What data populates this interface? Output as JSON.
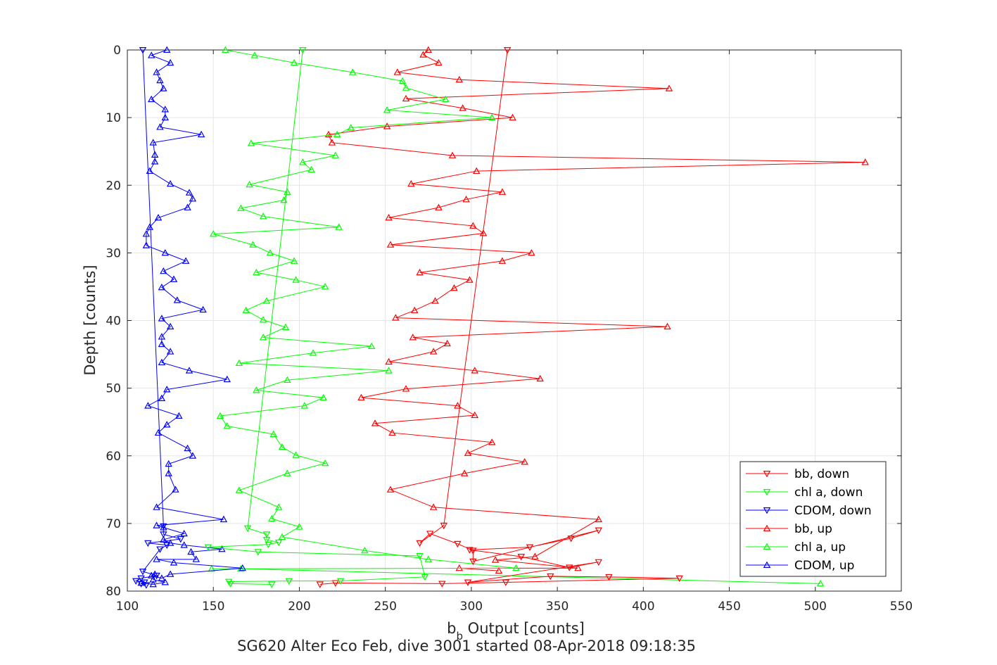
{
  "chart_data": {
    "type": "line",
    "title": "SG620 Alter Eco Feb, dive 3001 started 08-Apr-2018 09:18:35",
    "xlabel": {
      "main": "b",
      "sub": "b",
      "rest": " Output [counts]"
    },
    "ylabel": "Depth [counts]",
    "xlim": [
      100,
      550
    ],
    "ylim": [
      80,
      0
    ],
    "y_reversed": true,
    "grid": true,
    "legend_position": "bottom-right",
    "xticks": [
      100,
      150,
      200,
      250,
      300,
      350,
      400,
      450,
      500,
      550
    ],
    "yticks": [
      0,
      10,
      20,
      30,
      40,
      50,
      60,
      70,
      80
    ],
    "series": [
      {
        "name": "bb, down",
        "color": "#ff0000",
        "marker": "triangle-down",
        "x": [
          321,
          284,
          270,
          276,
          292,
          301,
          301,
          374,
          358,
          334,
          299,
          329,
          357,
          374,
          298,
          346,
          380,
          421,
          320,
          283,
          221,
          212
        ],
        "y": [
          0,
          70.3,
          72.9,
          71.5,
          73.0,
          74.0,
          75.6,
          71.0,
          72.2,
          73.5,
          73.9,
          74.9,
          76.5,
          75.7,
          78.7,
          77.8,
          77.9,
          78.1,
          78.7,
          78.9,
          78.8,
          79.0
        ]
      },
      {
        "name": "chl a, down",
        "color": "#00ff00",
        "marker": "triangle-down",
        "x": [
          202,
          170,
          181,
          181,
          188,
          182,
          147,
          176,
          270,
          273,
          224,
          194,
          159,
          160,
          184
        ],
        "y": [
          0,
          70.7,
          71.6,
          72.4,
          72.8,
          73.1,
          73.5,
          74.2,
          74.8,
          77.9,
          78.5,
          78.5,
          78.6,
          78.9,
          79.0
        ]
      },
      {
        "name": "CDOM, down",
        "color": "#0000ff",
        "marker": "triangle-down",
        "x": [
          109,
          121,
          121,
          131,
          112,
          123,
          119,
          109,
          117,
          108,
          105,
          110,
          108,
          111
        ],
        "y": [
          0,
          70.4,
          71.6,
          72.3,
          72.9,
          73.2,
          73.8,
          77.1,
          77.7,
          78.1,
          78.5,
          78.7,
          78.9,
          79.1
        ]
      },
      {
        "name": "bb, up",
        "color": "#ff0000",
        "marker": "triangle-up",
        "x": [
          275,
          272,
          281,
          257,
          293,
          415,
          262,
          295,
          324,
          251,
          217,
          219,
          289,
          529,
          303,
          265,
          318,
          297,
          281,
          252,
          301,
          307,
          253,
          335,
          318,
          270,
          299,
          290,
          279,
          267,
          256,
          414,
          266,
          286,
          278,
          252,
          302,
          340,
          262,
          236,
          292,
          302,
          244,
          254,
          312,
          298,
          331,
          296,
          253,
          278,
          374,
          337,
          314,
          362,
          293,
          316
        ],
        "y": [
          0,
          0.7,
          1.9,
          3.3,
          4.4,
          5.7,
          7.2,
          8.6,
          10.0,
          11.3,
          12.5,
          13.7,
          15.6,
          16.6,
          17.9,
          19.8,
          21.0,
          22.1,
          23.3,
          24.8,
          26.0,
          27.1,
          28.8,
          30.0,
          31.2,
          32.9,
          34.0,
          35.2,
          37.1,
          38.5,
          39.6,
          40.9,
          42.5,
          43.4,
          44.6,
          46.1,
          47.4,
          48.6,
          50.1,
          51.4,
          52.6,
          54.0,
          55.2,
          56.6,
          58.0,
          59.6,
          60.9,
          62.6,
          65.0,
          67.6,
          69.4,
          74.9,
          75.4,
          76.6,
          76.6,
          77.0
        ]
      },
      {
        "name": "chl a, up",
        "color": "#00ff00",
        "marker": "triangle-up",
        "x": [
          157,
          174,
          197,
          231,
          260,
          262,
          285,
          251,
          312,
          230,
          222,
          172,
          221,
          202,
          207,
          171,
          193,
          191,
          166,
          179,
          223,
          150,
          173,
          183,
          197,
          175,
          198,
          215,
          181,
          169,
          179,
          192,
          179,
          242,
          208,
          165,
          252,
          193,
          175,
          214,
          203,
          154,
          158,
          185,
          190,
          198,
          215,
          193,
          165,
          188,
          184,
          200,
          190,
          238,
          275,
          326,
          149,
          166,
          503
        ],
        "y": [
          0,
          0.8,
          1.9,
          3.3,
          4.6,
          5.6,
          7.3,
          8.9,
          10.0,
          11.5,
          12.5,
          13.8,
          15.6,
          16.6,
          17.7,
          19.9,
          21.0,
          22.2,
          23.4,
          24.6,
          26.2,
          27.2,
          28.8,
          30.0,
          31.2,
          32.9,
          34.0,
          35.0,
          37.1,
          38.5,
          39.9,
          41.0,
          42.5,
          43.8,
          44.8,
          46.3,
          47.4,
          48.8,
          50.3,
          51.4,
          52.6,
          54.1,
          55.6,
          56.8,
          58.7,
          59.9,
          61.1,
          62.6,
          65.1,
          67.6,
          69.3,
          70.5,
          72.0,
          74.0,
          75.3,
          76.6,
          76.7,
          76.7,
          78.9
        ]
      },
      {
        "name": "CDOM, up",
        "color": "#0000ff",
        "marker": "triangle-up",
        "x": [
          123,
          114,
          125,
          117,
          119,
          121,
          114,
          122,
          122,
          119,
          143,
          115,
          116,
          116,
          113,
          125,
          136,
          138,
          135,
          118,
          113,
          111,
          111,
          122,
          134,
          121,
          127,
          120,
          129,
          144,
          120,
          125,
          120,
          120,
          125,
          120,
          136,
          158,
          123,
          120,
          112,
          130,
          123,
          118,
          135,
          138,
          124,
          124,
          128,
          117,
          156,
          117,
          121,
          133,
          121,
          125,
          133,
          155,
          137,
          140,
          117,
          127,
          167,
          125,
          120,
          114,
          116,
          115,
          122,
          115,
          108
        ],
        "y": [
          0,
          0.8,
          1.9,
          3.3,
          4.5,
          5.7,
          7.3,
          8.8,
          10.0,
          11.4,
          12.5,
          13.7,
          15.5,
          16.5,
          17.9,
          19.8,
          21.1,
          22.0,
          23.3,
          24.8,
          26.2,
          27.2,
          28.9,
          30.0,
          31.2,
          32.7,
          33.9,
          35.1,
          37.0,
          38.4,
          39.7,
          40.9,
          42.4,
          43.5,
          44.6,
          46.2,
          47.4,
          48.7,
          50.2,
          51.5,
          52.6,
          54.1,
          55.4,
          56.6,
          58.9,
          60.0,
          61.2,
          62.6,
          65.0,
          67.6,
          69.4,
          70.3,
          70.6,
          71.5,
          72.4,
          72.9,
          73.2,
          73.8,
          74.2,
          75.3,
          75.3,
          75.8,
          76.6,
          77.5,
          78.1,
          77.7,
          77.5,
          78.3,
          78.7,
          79.0,
          78.8
        ]
      }
    ]
  }
}
